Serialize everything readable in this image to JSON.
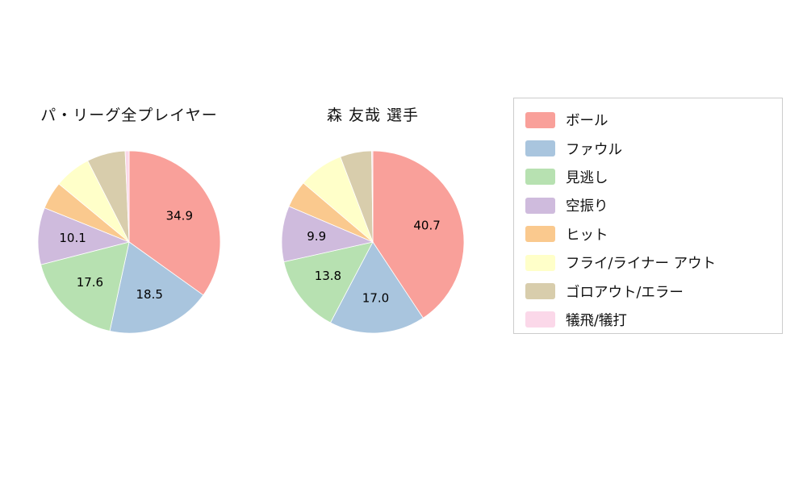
{
  "chart_data": [
    {
      "type": "pie",
      "title": "パ・リーグ全プレイヤー",
      "categories": [
        "ボール",
        "ファウル",
        "見逃し",
        "空振り",
        "ヒット",
        "フライ/ライナー アウト",
        "ゴロアウト/エラー",
        "犠飛/犠打"
      ],
      "values": [
        34.9,
        18.5,
        17.6,
        10.1,
        4.9,
        6.5,
        6.8,
        0.7
      ],
      "visible_slice_labels": [
        "34.9",
        "18.5",
        "17.6",
        "10.1"
      ],
      "start_angle": "top",
      "direction": "clockwise",
      "label_min_value": 9.5
    },
    {
      "type": "pie",
      "title": "森 友哉  選手",
      "categories": [
        "ボール",
        "ファウル",
        "見逃し",
        "空振り",
        "ヒット",
        "フライ/ライナー アウト",
        "ゴロアウト/エラー",
        "犠飛/犠打"
      ],
      "values": [
        40.7,
        17.0,
        13.8,
        9.9,
        4.8,
        8.0,
        5.6,
        0.2
      ],
      "visible_slice_labels": [
        "40.7",
        "17.0",
        "13.8",
        "9.9"
      ],
      "start_angle": "top",
      "direction": "clockwise",
      "label_min_value": 9.5
    }
  ],
  "legend": {
    "items": [
      {
        "label": "ボール",
        "color": "#F9A09A"
      },
      {
        "label": "ファウル",
        "color": "#A9C5DE"
      },
      {
        "label": "見逃し",
        "color": "#B7E1B1"
      },
      {
        "label": "空振り",
        "color": "#CFBBDD"
      },
      {
        "label": "ヒット",
        "color": "#FAC98E"
      },
      {
        "label": "フライ/ライナー アウト",
        "color": "#FFFFC9"
      },
      {
        "label": "ゴロアウト/エラー",
        "color": "#D8CDAC"
      },
      {
        "label": "犠飛/犠打",
        "color": "#FBD8E9"
      }
    ]
  }
}
